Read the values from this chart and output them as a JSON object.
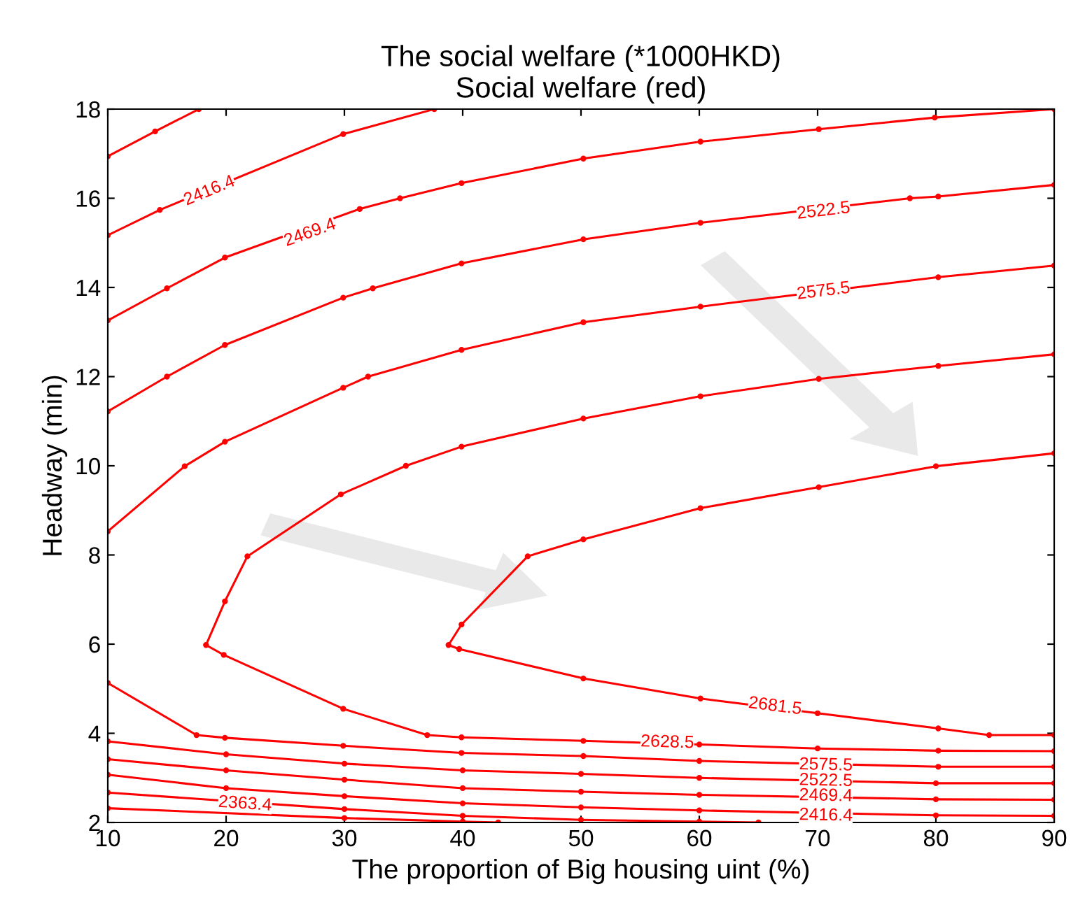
{
  "chart_data": {
    "type": "line",
    "title": "The social welfare (*1000HKD)\nSocial welfare (red)",
    "xlabel": "The proportion of Big housing uint (%)",
    "ylabel": "Headway (min)",
    "xlim": [
      10,
      90
    ],
    "ylim": [
      2,
      18
    ],
    "xticks": [
      10,
      20,
      30,
      40,
      50,
      60,
      70,
      80,
      90
    ],
    "yticks": [
      2,
      4,
      6,
      8,
      10,
      12,
      14,
      16,
      18
    ],
    "grid": false,
    "legend": false,
    "marker": "circle",
    "line_style": "solid",
    "series": [
      {
        "color": "#ff0000",
        "x": [
          10,
          14,
          17.7
        ],
        "values": [
          16.94,
          17.5,
          18
        ]
      },
      {
        "color": "#ff0000",
        "x": [
          10,
          14.4,
          29.9,
          37.6
        ],
        "values": [
          15.17,
          15.74,
          17.44,
          18
        ]
      },
      {
        "color": "#ff0000",
        "x": [
          10,
          15,
          19.9,
          31.3,
          34.7,
          39.9,
          50.2,
          60.1,
          70.1,
          79.9,
          90
        ],
        "values": [
          13.26,
          13.98,
          14.67,
          15.76,
          16.0,
          16.34,
          16.89,
          17.27,
          17.55,
          17.81,
          18.0
        ]
      },
      {
        "color": "#ff0000",
        "x": [
          10,
          15,
          19.9,
          29.9,
          32.4,
          39.9,
          50.2,
          60.1,
          77.8,
          80.2,
          90
        ],
        "values": [
          11.22,
          12.0,
          12.71,
          13.77,
          13.98,
          14.54,
          15.08,
          15.45,
          16.0,
          16.04,
          16.3
        ]
      },
      {
        "color": "#ff0000",
        "x": [
          10,
          16.5,
          19.9,
          29.9,
          32.0,
          39.9,
          50.2,
          60.1,
          80.2,
          90
        ],
        "values": [
          8.53,
          9.99,
          10.54,
          11.75,
          12.0,
          12.6,
          13.22,
          13.57,
          14.23,
          14.49
        ]
      },
      {
        "color": "#ff0000",
        "x": [
          90,
          80.2,
          70.1,
          60.1,
          50.2,
          39.9,
          35.2,
          29.7,
          21.8,
          19.9,
          18.3,
          19.8,
          29.9,
          37,
          39.9,
          50.2,
          60,
          70,
          80.2,
          90
        ],
        "values": [
          12.5,
          12.24,
          11.95,
          11.56,
          11.06,
          10.43,
          10.0,
          9.36,
          7.97,
          6.96,
          5.98,
          5.76,
          4.55,
          3.96,
          3.91,
          3.83,
          3.75,
          3.66,
          3.61,
          3.6
        ]
      },
      {
        "color": "#ff0000",
        "x": [
          90,
          80,
          70.1,
          60.1,
          50.2,
          45.5,
          39.9,
          38.8,
          39.7,
          50.2,
          60.1,
          70,
          80.2,
          84.5,
          90
        ],
        "values": [
          10.28,
          9.99,
          9.52,
          9.05,
          8.35,
          7.97,
          6.44,
          5.98,
          5.89,
          5.23,
          4.78,
          4.45,
          4.11,
          3.96,
          3.96
        ]
      },
      {
        "color": "#ff0000",
        "x": [
          10,
          17.5,
          19.9,
          29.9,
          39.9,
          50.2,
          60,
          80.2,
          90
        ],
        "values": [
          5.13,
          3.96,
          3.9,
          3.72,
          3.56,
          3.49,
          3.38,
          3.25,
          3.25
        ]
      },
      {
        "color": "#ff0000",
        "x": [
          10,
          20,
          30,
          40,
          50,
          60,
          80,
          90
        ],
        "values": [
          3.82,
          3.53,
          3.32,
          3.17,
          3.09,
          3.0,
          2.88,
          2.88
        ]
      },
      {
        "color": "#ff0000",
        "x": [
          10,
          20,
          30,
          40,
          50,
          60,
          80,
          90
        ],
        "values": [
          3.42,
          3.17,
          2.96,
          2.77,
          2.69,
          2.62,
          2.52,
          2.51
        ]
      },
      {
        "color": "#ff0000",
        "x": [
          10,
          20,
          30,
          40,
          50,
          60,
          80,
          90
        ],
        "values": [
          3.07,
          2.77,
          2.59,
          2.43,
          2.34,
          2.27,
          2.16,
          2.15
        ]
      },
      {
        "color": "#ff0000",
        "x": [
          10,
          30,
          40,
          50,
          60,
          65
        ],
        "values": [
          2.67,
          2.3,
          2.15,
          2.06,
          2.02,
          2.0
        ]
      },
      {
        "color": "#ff0000",
        "x": [
          10,
          30,
          40,
          43
        ],
        "values": [
          2.32,
          2.1,
          2.02,
          2.0
        ]
      }
    ],
    "annotations": [
      {
        "text": "2416.4",
        "x": 18.6,
        "y": 16.16
      },
      {
        "text": "2469.4",
        "x": 27.1,
        "y": 15.22
      },
      {
        "text": "2522.5",
        "x": 70.5,
        "y": 15.71
      },
      {
        "text": "2575.5",
        "x": 70.5,
        "y": 13.91
      },
      {
        "text": "2681.5",
        "x": 66.4,
        "y": 4.6
      },
      {
        "text": "2628.5",
        "x": 57.3,
        "y": 3.79
      },
      {
        "text": "2575.5",
        "x": 70.7,
        "y": 3.28
      },
      {
        "text": "2522.5",
        "x": 70.7,
        "y": 2.93
      },
      {
        "text": "2469.4",
        "x": 70.7,
        "y": 2.59
      },
      {
        "text": "2416.4",
        "x": 70.7,
        "y": 2.15
      },
      {
        "text": "2363.4",
        "x": 21.6,
        "y": 2.41
      }
    ]
  }
}
